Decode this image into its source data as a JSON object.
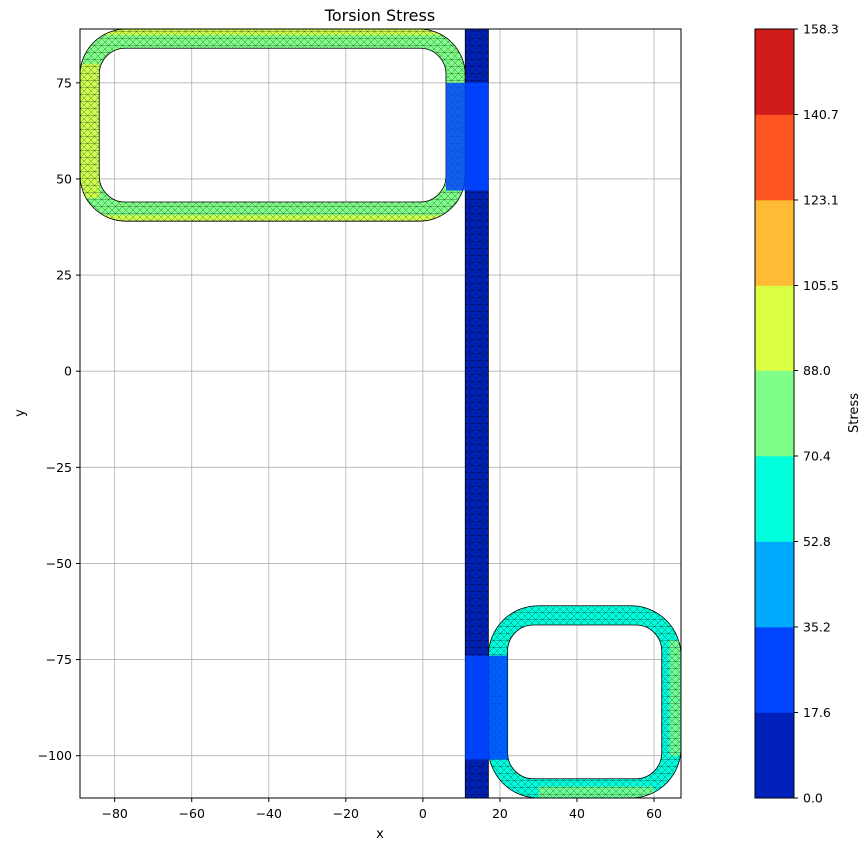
{
  "chart_data": {
    "type": "heatmap",
    "title": "Torsion Stress",
    "xlabel": "x",
    "ylabel": "y",
    "xlim": [
      -89,
      67
    ],
    "ylim": [
      -111,
      89
    ],
    "grid": true,
    "x_ticks": [
      -80,
      -60,
      -40,
      -20,
      0,
      20,
      40,
      60
    ],
    "x_tick_labels": [
      "−80",
      "−60",
      "−40",
      "−20",
      "0",
      "20",
      "40",
      "60"
    ],
    "y_ticks": [
      75,
      50,
      25,
      0,
      -25,
      -50,
      -75,
      -100
    ],
    "y_tick_labels": [
      "75",
      "50",
      "25",
      "0",
      "−25",
      "−50",
      "−75",
      "−100"
    ],
    "colorbar": {
      "label": "Stress",
      "levels": [
        0.0,
        17.6,
        35.2,
        52.8,
        70.4,
        88.0,
        105.5,
        123.1,
        140.7,
        158.3
      ],
      "level_labels": [
        "0.0",
        "17.6",
        "35.2",
        "52.8",
        "70.4",
        "88.0",
        "105.5",
        "123.1",
        "140.7",
        "158.3"
      ],
      "colors": [
        "#0022bb",
        "#0044ff",
        "#00aaff",
        "#00ffdd",
        "#7fff88",
        "#dbff44",
        "#ffbb33",
        "#ff5522",
        "#d11a1a"
      ]
    },
    "regions": [
      {
        "name": "top-left rounded rectangular tube",
        "x_range": [
          -89,
          11
        ],
        "y_range": [
          39,
          89
        ],
        "wall_thickness": 5,
        "stress_range": [
          70.4,
          123.1
        ]
      },
      {
        "name": "vertical web plate",
        "x_range": [
          11,
          17
        ],
        "y_range": [
          -111,
          89
        ],
        "stress_range": [
          0.0,
          35.2
        ]
      },
      {
        "name": "bottom-right rounded rectangular tube",
        "x_range": [
          17,
          67
        ],
        "y_range": [
          -111,
          -61
        ],
        "wall_thickness": 5,
        "stress_range": [
          52.8,
          88.0
        ]
      }
    ]
  }
}
